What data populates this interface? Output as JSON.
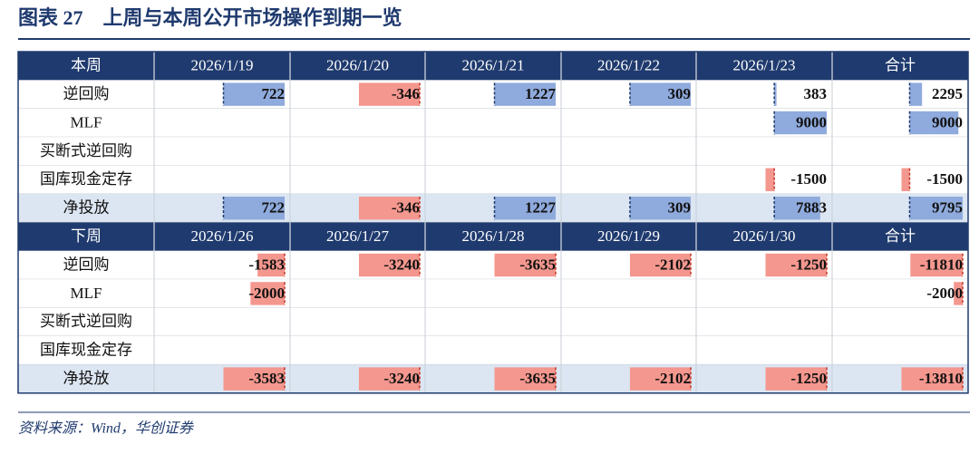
{
  "title": "图表 27　上周与本周公开市场操作到期一览",
  "sections": [
    {
      "header": [
        "本周",
        "2026/1/19",
        "2026/1/20",
        "2026/1/21",
        "2026/1/22",
        "2026/1/23",
        "合计"
      ],
      "rows": [
        {
          "label": "逆回购",
          "cells": [
            722,
            -346,
            1227,
            309,
            383,
            2295
          ]
        },
        {
          "label": "MLF",
          "cells": [
            null,
            null,
            null,
            null,
            9000,
            9000
          ]
        },
        {
          "label": "买断式逆回购",
          "cells": [
            null,
            null,
            null,
            null,
            null,
            null
          ]
        },
        {
          "label": "国库现金定存",
          "cells": [
            null,
            null,
            null,
            null,
            -1500,
            -1500
          ]
        },
        {
          "label": "净投放",
          "cells": [
            722,
            -346,
            1227,
            309,
            7883,
            9795
          ]
        }
      ]
    },
    {
      "header": [
        "下周",
        "2026/1/26",
        "2026/1/27",
        "2026/1/28",
        "2026/1/29",
        "2026/1/30",
        "合计"
      ],
      "rows": [
        {
          "label": "逆回购",
          "cells": [
            -1583,
            -3240,
            -3635,
            -2102,
            -1250,
            -11810
          ]
        },
        {
          "label": "MLF",
          "cells": [
            -2000,
            null,
            null,
            null,
            null,
            -2000
          ]
        },
        {
          "label": "买断式逆回购",
          "cells": [
            null,
            null,
            null,
            null,
            null,
            null
          ]
        },
        {
          "label": "国库现金定存",
          "cells": [
            null,
            null,
            null,
            null,
            null,
            null
          ]
        },
        {
          "label": "净投放",
          "cells": [
            -3583,
            -3240,
            -3635,
            -2102,
            -1250,
            -13810
          ]
        }
      ]
    }
  ],
  "source": "资料来源：Wind，华创证券"
}
